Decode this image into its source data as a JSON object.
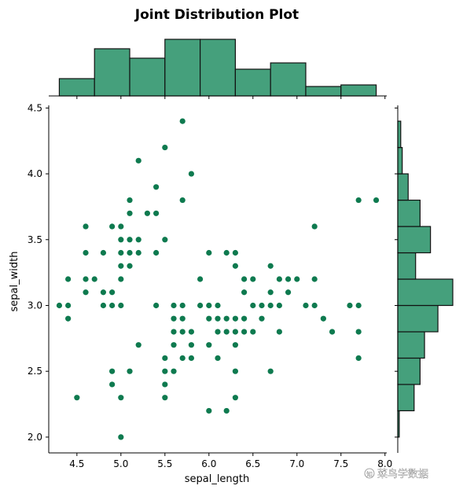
{
  "chart_data": {
    "type": "scatter",
    "title": "Joint Distribution Plot",
    "xlabel": "sepal_length",
    "ylabel": "sepal_width",
    "xlim": [
      4.18,
      8.02
    ],
    "ylim": [
      1.88,
      4.52
    ],
    "xticks": [
      "4.5",
      "5.0",
      "5.5",
      "6.0",
      "6.5",
      "7.0",
      "7.5",
      "8.0"
    ],
    "yticks": [
      "2.0",
      "2.5",
      "3.0",
      "3.5",
      "4.0",
      "4.5"
    ],
    "grid": false,
    "colors": {
      "point": "#0e7a4f",
      "bar": "#45a07c",
      "edge": "#111111"
    },
    "points": [
      [
        4.3,
        3.0
      ],
      [
        4.4,
        3.0
      ],
      [
        4.4,
        3.2
      ],
      [
        4.4,
        2.9
      ],
      [
        4.5,
        2.3
      ],
      [
        4.6,
        3.6
      ],
      [
        4.6,
        3.4
      ],
      [
        4.6,
        3.2
      ],
      [
        4.6,
        3.1
      ],
      [
        4.7,
        3.2
      ],
      [
        4.8,
        3.4
      ],
      [
        4.8,
        3.1
      ],
      [
        4.8,
        3.0
      ],
      [
        4.9,
        3.6
      ],
      [
        4.9,
        3.1
      ],
      [
        4.9,
        3.0
      ],
      [
        4.9,
        2.5
      ],
      [
        4.9,
        2.4
      ],
      [
        5.0,
        3.6
      ],
      [
        5.0,
        3.5
      ],
      [
        5.0,
        3.4
      ],
      [
        5.0,
        3.3
      ],
      [
        5.0,
        3.2
      ],
      [
        5.0,
        3.0
      ],
      [
        5.0,
        2.3
      ],
      [
        5.0,
        2.0
      ],
      [
        5.1,
        3.8
      ],
      [
        5.1,
        3.7
      ],
      [
        5.1,
        3.5
      ],
      [
        5.1,
        3.4
      ],
      [
        5.1,
        3.3
      ],
      [
        5.1,
        2.5
      ],
      [
        5.2,
        4.1
      ],
      [
        5.2,
        3.5
      ],
      [
        5.2,
        3.4
      ],
      [
        5.2,
        2.7
      ],
      [
        5.3,
        3.7
      ],
      [
        5.4,
        3.9
      ],
      [
        5.4,
        3.7
      ],
      [
        5.4,
        3.4
      ],
      [
        5.4,
        3.0
      ],
      [
        5.5,
        4.2
      ],
      [
        5.5,
        3.5
      ],
      [
        5.5,
        2.6
      ],
      [
        5.5,
        2.5
      ],
      [
        5.5,
        2.4
      ],
      [
        5.5,
        2.3
      ],
      [
        5.6,
        3.0
      ],
      [
        5.6,
        2.9
      ],
      [
        5.6,
        2.8
      ],
      [
        5.6,
        2.7
      ],
      [
        5.6,
        2.5
      ],
      [
        5.7,
        4.4
      ],
      [
        5.7,
        3.8
      ],
      [
        5.7,
        3.0
      ],
      [
        5.7,
        2.9
      ],
      [
        5.7,
        2.8
      ],
      [
        5.7,
        2.6
      ],
      [
        5.8,
        4.0
      ],
      [
        5.8,
        2.8
      ],
      [
        5.8,
        2.7
      ],
      [
        5.8,
        2.6
      ],
      [
        5.9,
        3.2
      ],
      [
        5.9,
        3.0
      ],
      [
        6.0,
        3.4
      ],
      [
        6.0,
        3.0
      ],
      [
        6.0,
        2.9
      ],
      [
        6.0,
        2.7
      ],
      [
        6.0,
        2.2
      ],
      [
        6.1,
        3.0
      ],
      [
        6.1,
        2.9
      ],
      [
        6.1,
        2.8
      ],
      [
        6.1,
        2.6
      ],
      [
        6.2,
        3.4
      ],
      [
        6.2,
        2.9
      ],
      [
        6.2,
        2.8
      ],
      [
        6.2,
        2.2
      ],
      [
        6.3,
        3.4
      ],
      [
        6.3,
        3.3
      ],
      [
        6.3,
        2.9
      ],
      [
        6.3,
        2.8
      ],
      [
        6.3,
        2.7
      ],
      [
        6.3,
        2.5
      ],
      [
        6.3,
        2.3
      ],
      [
        6.4,
        3.2
      ],
      [
        6.4,
        3.1
      ],
      [
        6.4,
        2.9
      ],
      [
        6.4,
        2.8
      ],
      [
        6.5,
        3.2
      ],
      [
        6.5,
        3.0
      ],
      [
        6.5,
        2.8
      ],
      [
        6.6,
        3.0
      ],
      [
        6.6,
        2.9
      ],
      [
        6.7,
        3.3
      ],
      [
        6.7,
        3.1
      ],
      [
        6.7,
        3.0
      ],
      [
        6.7,
        2.5
      ],
      [
        6.8,
        3.2
      ],
      [
        6.8,
        3.0
      ],
      [
        6.8,
        2.8
      ],
      [
        6.9,
        3.2
      ],
      [
        6.9,
        3.1
      ],
      [
        7.0,
        3.2
      ],
      [
        7.1,
        3.0
      ],
      [
        7.2,
        3.6
      ],
      [
        7.2,
        3.2
      ],
      [
        7.2,
        3.0
      ],
      [
        7.3,
        2.9
      ],
      [
        7.4,
        2.8
      ],
      [
        7.6,
        3.0
      ],
      [
        7.7,
        3.8
      ],
      [
        7.7,
        3.0
      ],
      [
        7.7,
        2.8
      ],
      [
        7.7,
        2.6
      ],
      [
        7.9,
        3.8
      ]
    ],
    "marginal_x": {
      "bin_edges": [
        4.3,
        4.7,
        5.1,
        5.5,
        5.9,
        6.3,
        6.7,
        7.1,
        7.5,
        7.9
      ],
      "counts": [
        11,
        30,
        24,
        36,
        36,
        17,
        21,
        6,
        7
      ]
    },
    "marginal_y": {
      "bin_edges": [
        2.0,
        2.2,
        2.4,
        2.6,
        2.8,
        3.0,
        3.2,
        3.4,
        3.6,
        3.8,
        4.0,
        4.2,
        4.4
      ],
      "counts": [
        1,
        11,
        15,
        18,
        27,
        37,
        12,
        22,
        15,
        7,
        3,
        2
      ]
    }
  },
  "watermark": {
    "icon": "zhihu-logo-icon",
    "text": "菜鸟学数据"
  }
}
